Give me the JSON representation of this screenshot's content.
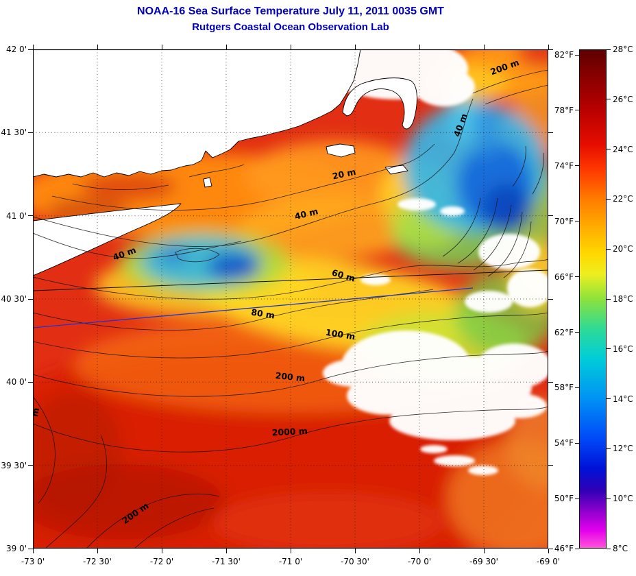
{
  "header": {
    "title": "NOAA-16 Sea Surface Temperature July 11, 2011 0035 GMT",
    "subtitle": "Rutgers Coastal Ocean Observation Lab",
    "color": "#0000bb"
  },
  "map": {
    "lat_ticks": [
      "42 0'",
      "41 30'",
      "41 0'",
      "40 30'",
      "40 0'",
      "39 30'",
      "39 0'"
    ],
    "lon_ticks": [
      "-73 0'",
      "-72 30'",
      "-72 0'",
      "-71 30'",
      "-71 0'",
      "-70 30'",
      "-70 0'",
      "-69 30'",
      "-69 0'"
    ],
    "contour_labels": [
      "200 m",
      "40 m",
      "20 m",
      "40 m",
      "40 m",
      "60 m",
      "80 m",
      "100 m",
      "200 m",
      "2000 m",
      "200 m",
      "m"
    ]
  },
  "colorbar": {
    "f_labels": [
      "82°F",
      "78°F",
      "74°F",
      "70°F",
      "66°F",
      "62°F",
      "58°F",
      "54°F",
      "50°F",
      "46°F"
    ],
    "c_labels": [
      "28°C",
      "26°C",
      "24°C",
      "22°C",
      "20°C",
      "18°C",
      "16°C",
      "14°C",
      "12°C",
      "10°C",
      "8°C"
    ],
    "stops": [
      {
        "t": 0.0,
        "color": "#5e0000"
      },
      {
        "t": 0.05,
        "color": "#870000"
      },
      {
        "t": 0.12,
        "color": "#b80000"
      },
      {
        "t": 0.19,
        "color": "#e60d00"
      },
      {
        "t": 0.24,
        "color": "#ff3800"
      },
      {
        "t": 0.3,
        "color": "#ff7c00"
      },
      {
        "t": 0.36,
        "color": "#ffb000"
      },
      {
        "t": 0.41,
        "color": "#ffd900"
      },
      {
        "t": 0.45,
        "color": "#eeee20"
      },
      {
        "t": 0.5,
        "color": "#8ce23c"
      },
      {
        "t": 0.56,
        "color": "#2eda96"
      },
      {
        "t": 0.62,
        "color": "#00cdd8"
      },
      {
        "t": 0.7,
        "color": "#0092f5"
      },
      {
        "t": 0.78,
        "color": "#004af8"
      },
      {
        "t": 0.84,
        "color": "#0012d8"
      },
      {
        "t": 0.885,
        "color": "#3000b4"
      },
      {
        "t": 0.925,
        "color": "#8c00cc"
      },
      {
        "t": 0.965,
        "color": "#e400ee"
      },
      {
        "t": 1.0,
        "color": "#ff55d8"
      }
    ]
  }
}
